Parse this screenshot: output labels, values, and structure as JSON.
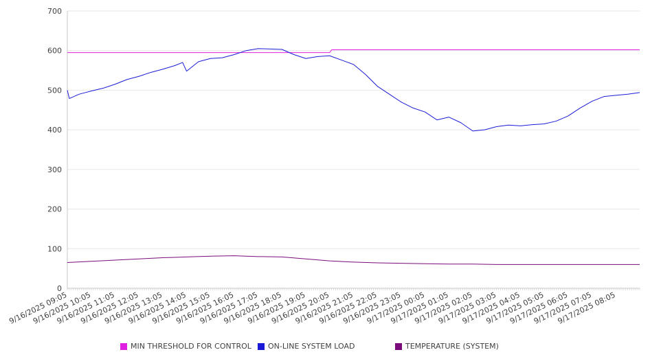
{
  "chart_data": {
    "type": "line",
    "ylim": [
      0,
      700
    ],
    "yticks": [
      0,
      100,
      200,
      300,
      400,
      500,
      600,
      700
    ],
    "grid": true,
    "legend_position": "bottom",
    "x_tick_labels": [
      "9/16/2025 09:05",
      "9/16/2025 10:05",
      "9/16/2025 11:05",
      "9/16/2025 12:05",
      "9/16/2025 13:05",
      "9/16/2025 14:05",
      "9/16/2025 15:05",
      "9/16/2025 16:05",
      "9/16/2025 17:05",
      "9/16/2025 18:05",
      "9/16/2025 19:05",
      "9/16/2025 20:05",
      "9/16/2025 21:05",
      "9/16/2025 22:05",
      "9/16/2025 23:05",
      "9/17/2025 00:05",
      "9/17/2025 01:05",
      "9/17/2025 02:05",
      "9/17/2025 03:05",
      "9/17/2025 04:05",
      "9/17/2025 05:05",
      "9/17/2025 06:05",
      "9/17/2025 07:05",
      "9/17/2025 08:05"
    ],
    "series": [
      {
        "name": "MIN THRESHOLD FOR CONTROL",
        "color": "#e020e0",
        "x": [
          "9/16/2025 09:05",
          "9/16/2025 20:05",
          "9/16/2025 20:10",
          "9/17/2025 09:05"
        ],
        "values": [
          595,
          595,
          602,
          602
        ]
      },
      {
        "name": "ON-LINE SYSTEM LOAD",
        "color": "#1a1ad6",
        "x": [
          "9/16/2025 09:05",
          "9/16/2025 09:10",
          "9/16/2025 09:35",
          "9/16/2025 10:05",
          "9/16/2025 10:35",
          "9/16/2025 11:05",
          "9/16/2025 11:35",
          "9/16/2025 12:05",
          "9/16/2025 12:35",
          "9/16/2025 13:05",
          "9/16/2025 13:35",
          "9/16/2025 13:55",
          "9/16/2025 14:05",
          "9/16/2025 14:35",
          "9/16/2025 15:05",
          "9/16/2025 15:35",
          "9/16/2025 16:05",
          "9/16/2025 16:35",
          "9/16/2025 17:05",
          "9/16/2025 17:35",
          "9/16/2025 18:05",
          "9/16/2025 18:35",
          "9/16/2025 19:05",
          "9/16/2025 19:35",
          "9/16/2025 20:05",
          "9/16/2025 20:35",
          "9/16/2025 21:05",
          "9/16/2025 21:35",
          "9/16/2025 22:05",
          "9/16/2025 22:35",
          "9/16/2025 23:05",
          "9/16/2025 23:35",
          "9/17/2025 00:05",
          "9/17/2025 00:35",
          "9/17/2025 01:05",
          "9/17/2025 01:35",
          "9/17/2025 02:05",
          "9/17/2025 02:35",
          "9/17/2025 03:05",
          "9/17/2025 03:35",
          "9/17/2025 04:05",
          "9/17/2025 04:35",
          "9/17/2025 05:05",
          "9/17/2025 05:35",
          "9/17/2025 06:05",
          "9/17/2025 06:35",
          "9/17/2025 07:05",
          "9/17/2025 07:35",
          "9/17/2025 08:05",
          "9/17/2025 08:35",
          "9/17/2025 09:05"
        ],
        "values": [
          500,
          479,
          490,
          498,
          505,
          515,
          527,
          535,
          545,
          553,
          562,
          570,
          548,
          572,
          580,
          582,
          590,
          600,
          605,
          604,
          603,
          590,
          580,
          585,
          587,
          576,
          565,
          540,
          510,
          490,
          470,
          455,
          445,
          425,
          432,
          418,
          397,
          400,
          408,
          412,
          410,
          413,
          415,
          422,
          435,
          455,
          472,
          484,
          487,
          490,
          494
        ]
      },
      {
        "name": "TEMPERATURE (SYSTEM)",
        "color": "#7a0a7a",
        "x": [
          "9/16/2025 09:05",
          "9/16/2025 10:05",
          "9/16/2025 11:05",
          "9/16/2025 12:05",
          "9/16/2025 13:05",
          "9/16/2025 14:05",
          "9/16/2025 15:05",
          "9/16/2025 16:05",
          "9/16/2025 17:05",
          "9/16/2025 18:05",
          "9/16/2025 19:05",
          "9/16/2025 20:05",
          "9/16/2025 21:05",
          "9/16/2025 22:05",
          "9/16/2025 23:05",
          "9/17/2025 00:05",
          "9/17/2025 01:05",
          "9/17/2025 02:05",
          "9/17/2025 03:05",
          "9/17/2025 04:05",
          "9/17/2025 05:05",
          "9/17/2025 06:05",
          "9/17/2025 07:05",
          "9/17/2025 08:05",
          "9/17/2025 09:05"
        ],
        "values": [
          65,
          68,
          71,
          74,
          77,
          79,
          81,
          82,
          80,
          79,
          74,
          69,
          66,
          64,
          63,
          62,
          61,
          61,
          60,
          60,
          60,
          60,
          60,
          60,
          60
        ]
      }
    ]
  }
}
